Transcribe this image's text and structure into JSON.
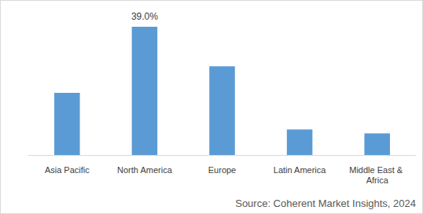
{
  "chart_data": {
    "type": "bar",
    "categories": [
      "Asia Pacific",
      "North America",
      "Europe",
      "Latin America",
      "Middle East & Africa"
    ],
    "values": [
      18.9,
      39.0,
      27.0,
      7.8,
      6.6
    ],
    "value_labels": [
      null,
      "39.0%",
      null,
      null,
      null
    ],
    "color": "#5b9bd5",
    "ylim": [
      0,
      39
    ],
    "grid": false,
    "data_labels": true,
    "tick_labels": "x",
    "annotations": [
      "Source: Coherent Market Insights, 2024"
    ]
  }
}
